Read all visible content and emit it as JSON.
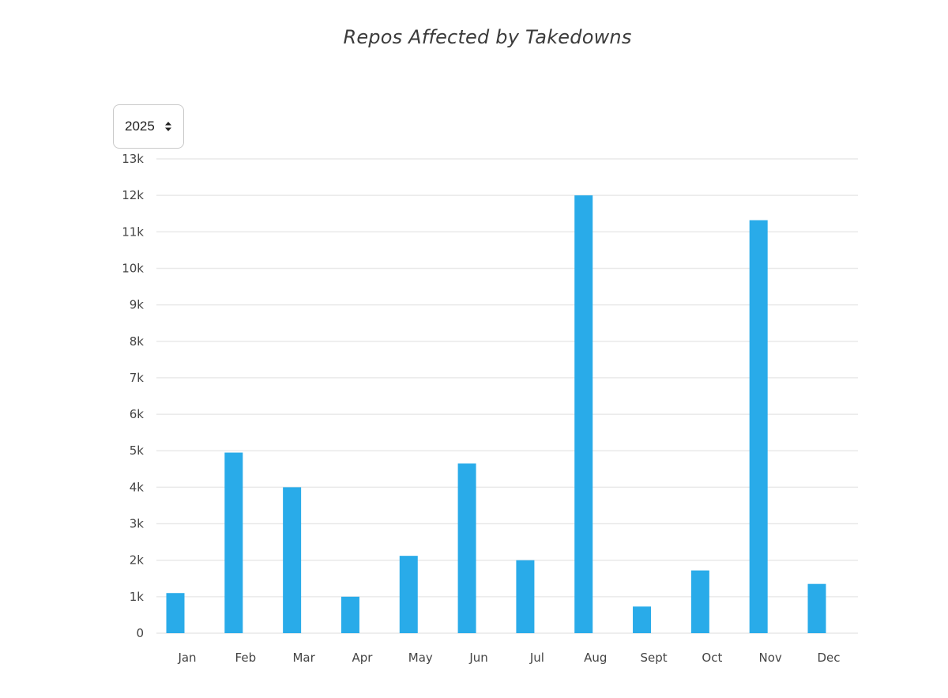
{
  "year_selector": {
    "selected": "2025",
    "icon": "sort-arrows-icon"
  },
  "colors": {
    "bar": "#29abe9",
    "grid": "#e9e9e9",
    "title": "#3b3b3b",
    "tick_label": "#444444"
  },
  "chart_data": {
    "type": "bar",
    "title": "Repos Affected by Takedowns",
    "xlabel": "",
    "ylabel": "",
    "categories": [
      "Jan",
      "Feb",
      "Mar",
      "Apr",
      "May",
      "Jun",
      "Jul",
      "Aug",
      "Sept",
      "Oct",
      "Nov",
      "Dec"
    ],
    "values": [
      1100,
      4950,
      4000,
      1000,
      2120,
      4650,
      2000,
      12000,
      730,
      1720,
      11320,
      1350
    ],
    "ylim": [
      0,
      13000
    ],
    "yticks": [
      0,
      1000,
      2000,
      3000,
      4000,
      5000,
      6000,
      7000,
      8000,
      9000,
      10000,
      11000,
      12000,
      13000
    ],
    "ytick_labels": [
      "0",
      "1k",
      "2k",
      "3k",
      "4k",
      "5k",
      "6k",
      "7k",
      "8k",
      "9k",
      "10k",
      "11k",
      "12k",
      "13k"
    ],
    "grid": true,
    "legend": "none"
  }
}
